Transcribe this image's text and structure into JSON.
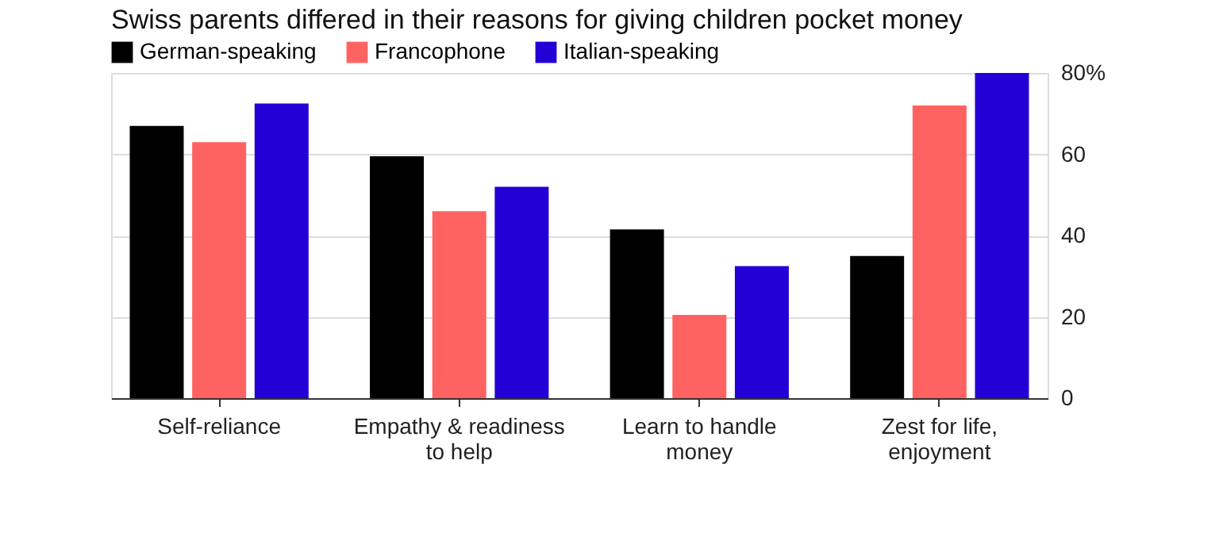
{
  "chart_data": {
    "type": "bar",
    "title": "Swiss parents differed in their reasons for giving children pocket money",
    "categories": [
      "Self-reliance",
      "Empathy & readiness\nto help",
      "Learn to handle\nmoney",
      "Zest for life,\nenjoyment"
    ],
    "series": [
      {
        "name": "German-speaking",
        "color": "#000000",
        "values": [
          67,
          59.5,
          41.5,
          35
        ]
      },
      {
        "name": "Francophone",
        "color": "#ff6361",
        "values": [
          63,
          46,
          20.5,
          72
        ]
      },
      {
        "name": "Italian-speaking",
        "color": "#2200d6",
        "values": [
          72.5,
          52,
          32.5,
          80
        ]
      }
    ],
    "ylim": [
      0,
      80
    ],
    "yticks": [
      0,
      20,
      40,
      60,
      {
        "value": 80,
        "label": "80%"
      }
    ],
    "grid": "y",
    "legend": "top left"
  }
}
